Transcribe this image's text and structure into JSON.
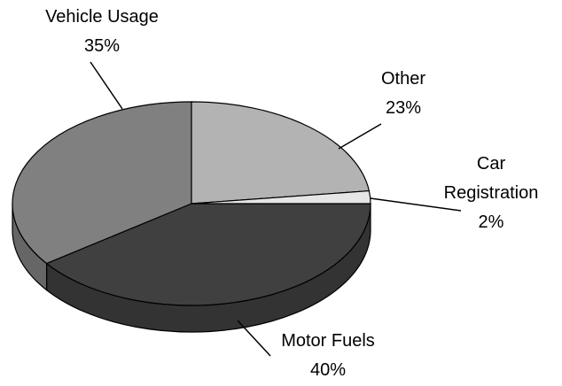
{
  "chart_data": {
    "type": "pie",
    "categories": [
      "Motor Fuels",
      "Vehicle Usage",
      "Other",
      "Car Registration"
    ],
    "values": [
      40,
      35,
      23,
      2
    ],
    "value_labels": [
      "40%",
      "35%",
      "23%",
      "2%"
    ],
    "colors": [
      "#404040",
      "#808080",
      "#b3b3b3",
      "#e6e6e6"
    ],
    "side_colors": [
      "#333333",
      "#666666",
      "#8f8f8f",
      "#b8b8b8"
    ]
  }
}
